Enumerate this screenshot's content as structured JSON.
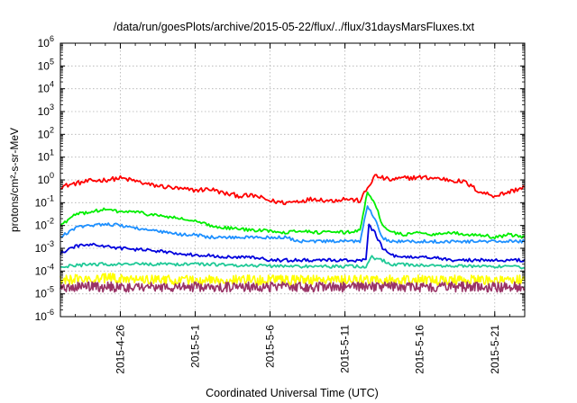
{
  "chart_data": {
    "type": "line",
    "title": "/data/run/goesPlots/archive/2015-05-22/flux/../flux/31daysMarsFluxes.txt",
    "xlabel": "Coordinated Universal Time (UTC)",
    "ylabel": "protons/cm²-s-sr-MeV",
    "y_scale": "log",
    "ylim": [
      1e-06,
      1000000.0
    ],
    "y_tick_exponents": [
      "-6",
      "-5",
      "-4",
      "-3",
      "-2",
      "-1",
      "0",
      "1",
      "2",
      "3",
      "4",
      "5",
      "6"
    ],
    "y_tick_base": "10",
    "xlim": [
      "2015-04-22",
      "2015-05-23"
    ],
    "x_ticks": [
      {
        "date": "2015-04-26",
        "label": "2015-4-26"
      },
      {
        "date": "2015-05-01",
        "label": "2015-5-1"
      },
      {
        "date": "2015-05-06",
        "label": "2015-5-6"
      },
      {
        "date": "2015-05-11",
        "label": "2015-5-11"
      },
      {
        "date": "2015-05-16",
        "label": "2015-5-16"
      },
      {
        "date": "2015-05-21",
        "label": "2015-5-21"
      }
    ],
    "grid": true,
    "series": [
      {
        "color": "#ff0000",
        "x": [
          "2015-04-22",
          "2015-04-23",
          "2015-04-24",
          "2015-04-25",
          "2015-04-26",
          "2015-04-27",
          "2015-04-28",
          "2015-04-29",
          "2015-04-30",
          "2015-05-01",
          "2015-05-02",
          "2015-05-03",
          "2015-05-04",
          "2015-05-05",
          "2015-05-06",
          "2015-05-07",
          "2015-05-08",
          "2015-05-09",
          "2015-05-10",
          "2015-05-11",
          "2015-05-12",
          "2015-05-13",
          "2015-05-14",
          "2015-05-15",
          "2015-05-16",
          "2015-05-17",
          "2015-05-18",
          "2015-05-19",
          "2015-05-20",
          "2015-05-21",
          "2015-05-22",
          "2015-05-23"
        ],
        "y": [
          0.5,
          0.7,
          0.9,
          1.0,
          1.2,
          0.9,
          0.6,
          0.5,
          0.4,
          0.35,
          0.4,
          0.25,
          0.2,
          0.2,
          0.12,
          0.1,
          0.12,
          0.15,
          0.12,
          0.15,
          0.12,
          1.5,
          1.0,
          1.2,
          1.3,
          1.2,
          1.0,
          0.8,
          0.3,
          0.2,
          0.3,
          0.5
        ]
      },
      {
        "color": "#00ee00",
        "x": [
          "2015-04-22",
          "2015-04-23",
          "2015-04-24",
          "2015-04-25",
          "2015-04-26",
          "2015-04-27",
          "2015-04-28",
          "2015-04-29",
          "2015-04-30",
          "2015-05-01",
          "2015-05-02",
          "2015-05-03",
          "2015-05-04",
          "2015-05-05",
          "2015-05-06",
          "2015-05-07",
          "2015-05-08",
          "2015-05-09",
          "2015-05-10",
          "2015-05-11",
          "2015-05-12",
          "2015-05-12.5",
          "2015-05-13",
          "2015-05-13.5",
          "2015-05-14",
          "2015-05-15",
          "2015-05-16",
          "2015-05-17",
          "2015-05-18",
          "2015-05-19",
          "2015-05-20",
          "2015-05-21",
          "2015-05-22",
          "2015-05-23"
        ],
        "y": [
          0.01,
          0.03,
          0.04,
          0.05,
          0.04,
          0.04,
          0.03,
          0.025,
          0.02,
          0.015,
          0.01,
          0.008,
          0.007,
          0.006,
          0.006,
          0.005,
          0.006,
          0.005,
          0.005,
          0.005,
          0.006,
          0.3,
          0.1,
          0.01,
          0.005,
          0.004,
          0.005,
          0.004,
          0.005,
          0.004,
          0.004,
          0.003,
          0.004,
          0.003
        ]
      },
      {
        "color": "#1e90ff",
        "x": [
          "2015-04-22",
          "2015-04-23",
          "2015-04-24",
          "2015-04-25",
          "2015-04-26",
          "2015-04-27",
          "2015-04-28",
          "2015-04-29",
          "2015-04-30",
          "2015-05-01",
          "2015-05-02",
          "2015-05-03",
          "2015-05-04",
          "2015-05-05",
          "2015-05-06",
          "2015-05-07",
          "2015-05-08",
          "2015-05-09",
          "2015-05-10",
          "2015-05-11",
          "2015-05-12",
          "2015-05-12.5",
          "2015-05-13",
          "2015-05-13.5",
          "2015-05-14",
          "2015-05-15",
          "2015-05-16",
          "2015-05-17",
          "2015-05-18",
          "2015-05-19",
          "2015-05-20",
          "2015-05-21",
          "2015-05-22",
          "2015-05-23"
        ],
        "y": [
          0.003,
          0.008,
          0.01,
          0.012,
          0.01,
          0.008,
          0.006,
          0.005,
          0.004,
          0.004,
          0.003,
          0.003,
          0.003,
          0.003,
          0.003,
          0.003,
          0.002,
          0.002,
          0.002,
          0.002,
          0.002,
          0.08,
          0.02,
          0.003,
          0.002,
          0.002,
          0.002,
          0.002,
          0.002,
          0.002,
          0.002,
          0.002,
          0.002,
          0.002
        ]
      },
      {
        "color": "#0000dd",
        "x": [
          "2015-04-22",
          "2015-04-23",
          "2015-04-24",
          "2015-04-25",
          "2015-04-26",
          "2015-04-27",
          "2015-04-28",
          "2015-04-29",
          "2015-04-30",
          "2015-05-01",
          "2015-05-02",
          "2015-05-03",
          "2015-05-04",
          "2015-05-05",
          "2015-05-06",
          "2015-05-07",
          "2015-05-08",
          "2015-05-09",
          "2015-05-10",
          "2015-05-11",
          "2015-05-12",
          "2015-05-12.4",
          "2015-05-12.6",
          "2015-05-13",
          "2015-05-13.5",
          "2015-05-14",
          "2015-05-15",
          "2015-05-16",
          "2015-05-17",
          "2015-05-18",
          "2015-05-19",
          "2015-05-20",
          "2015-05-21",
          "2015-05-22",
          "2015-05-23"
        ],
        "y": [
          0.0006,
          0.0012,
          0.0015,
          0.0012,
          0.001,
          0.0009,
          0.0008,
          0.0007,
          0.0006,
          0.0005,
          0.0005,
          0.0004,
          0.0004,
          0.0004,
          0.0003,
          0.0003,
          0.0003,
          0.0003,
          0.0003,
          0.0003,
          0.0003,
          0.0003,
          0.01,
          0.005,
          0.001,
          0.0005,
          0.0004,
          0.0004,
          0.0004,
          0.0003,
          0.0003,
          0.0003,
          0.0003,
          0.0003,
          0.0003
        ]
      },
      {
        "color": "#20c997",
        "x": [
          "2015-04-22",
          "2015-04-24",
          "2015-04-26",
          "2015-04-28",
          "2015-04-30",
          "2015-05-02",
          "2015-05-04",
          "2015-05-06",
          "2015-05-08",
          "2015-05-10",
          "2015-05-12",
          "2015-05-12.4",
          "2015-05-12.8",
          "2015-05-13.5",
          "2015-05-14",
          "2015-05-16",
          "2015-05-18",
          "2015-05-20",
          "2015-05-22",
          "2015-05-23"
        ],
        "y": [
          0.00015,
          0.0002,
          0.0002,
          0.0002,
          0.0002,
          0.0002,
          0.00018,
          0.00017,
          0.00016,
          0.00016,
          0.00016,
          0.00016,
          0.0004,
          0.0003,
          0.0002,
          0.00018,
          0.00017,
          0.00016,
          0.00015,
          0.00015
        ]
      },
      {
        "color": "#ffff00",
        "x": [
          "2015-04-22",
          "2015-04-26",
          "2015-04-30",
          "2015-05-04",
          "2015-05-08",
          "2015-05-12",
          "2015-05-16",
          "2015-05-20",
          "2015-05-23"
        ],
        "y": [
          4e-05,
          5e-05,
          4e-05,
          4e-05,
          4e-05,
          4e-05,
          4e-05,
          4e-05,
          4e-05
        ]
      },
      {
        "color": "#993366",
        "x": [
          "2015-04-22",
          "2015-04-26",
          "2015-04-30",
          "2015-05-04",
          "2015-05-08",
          "2015-05-12",
          "2015-05-16",
          "2015-05-20",
          "2015-05-23"
        ],
        "y": [
          2e-05,
          2e-05,
          2e-05,
          2e-05,
          2e-05,
          2e-05,
          2e-05,
          2e-05,
          2e-05
        ]
      }
    ]
  }
}
